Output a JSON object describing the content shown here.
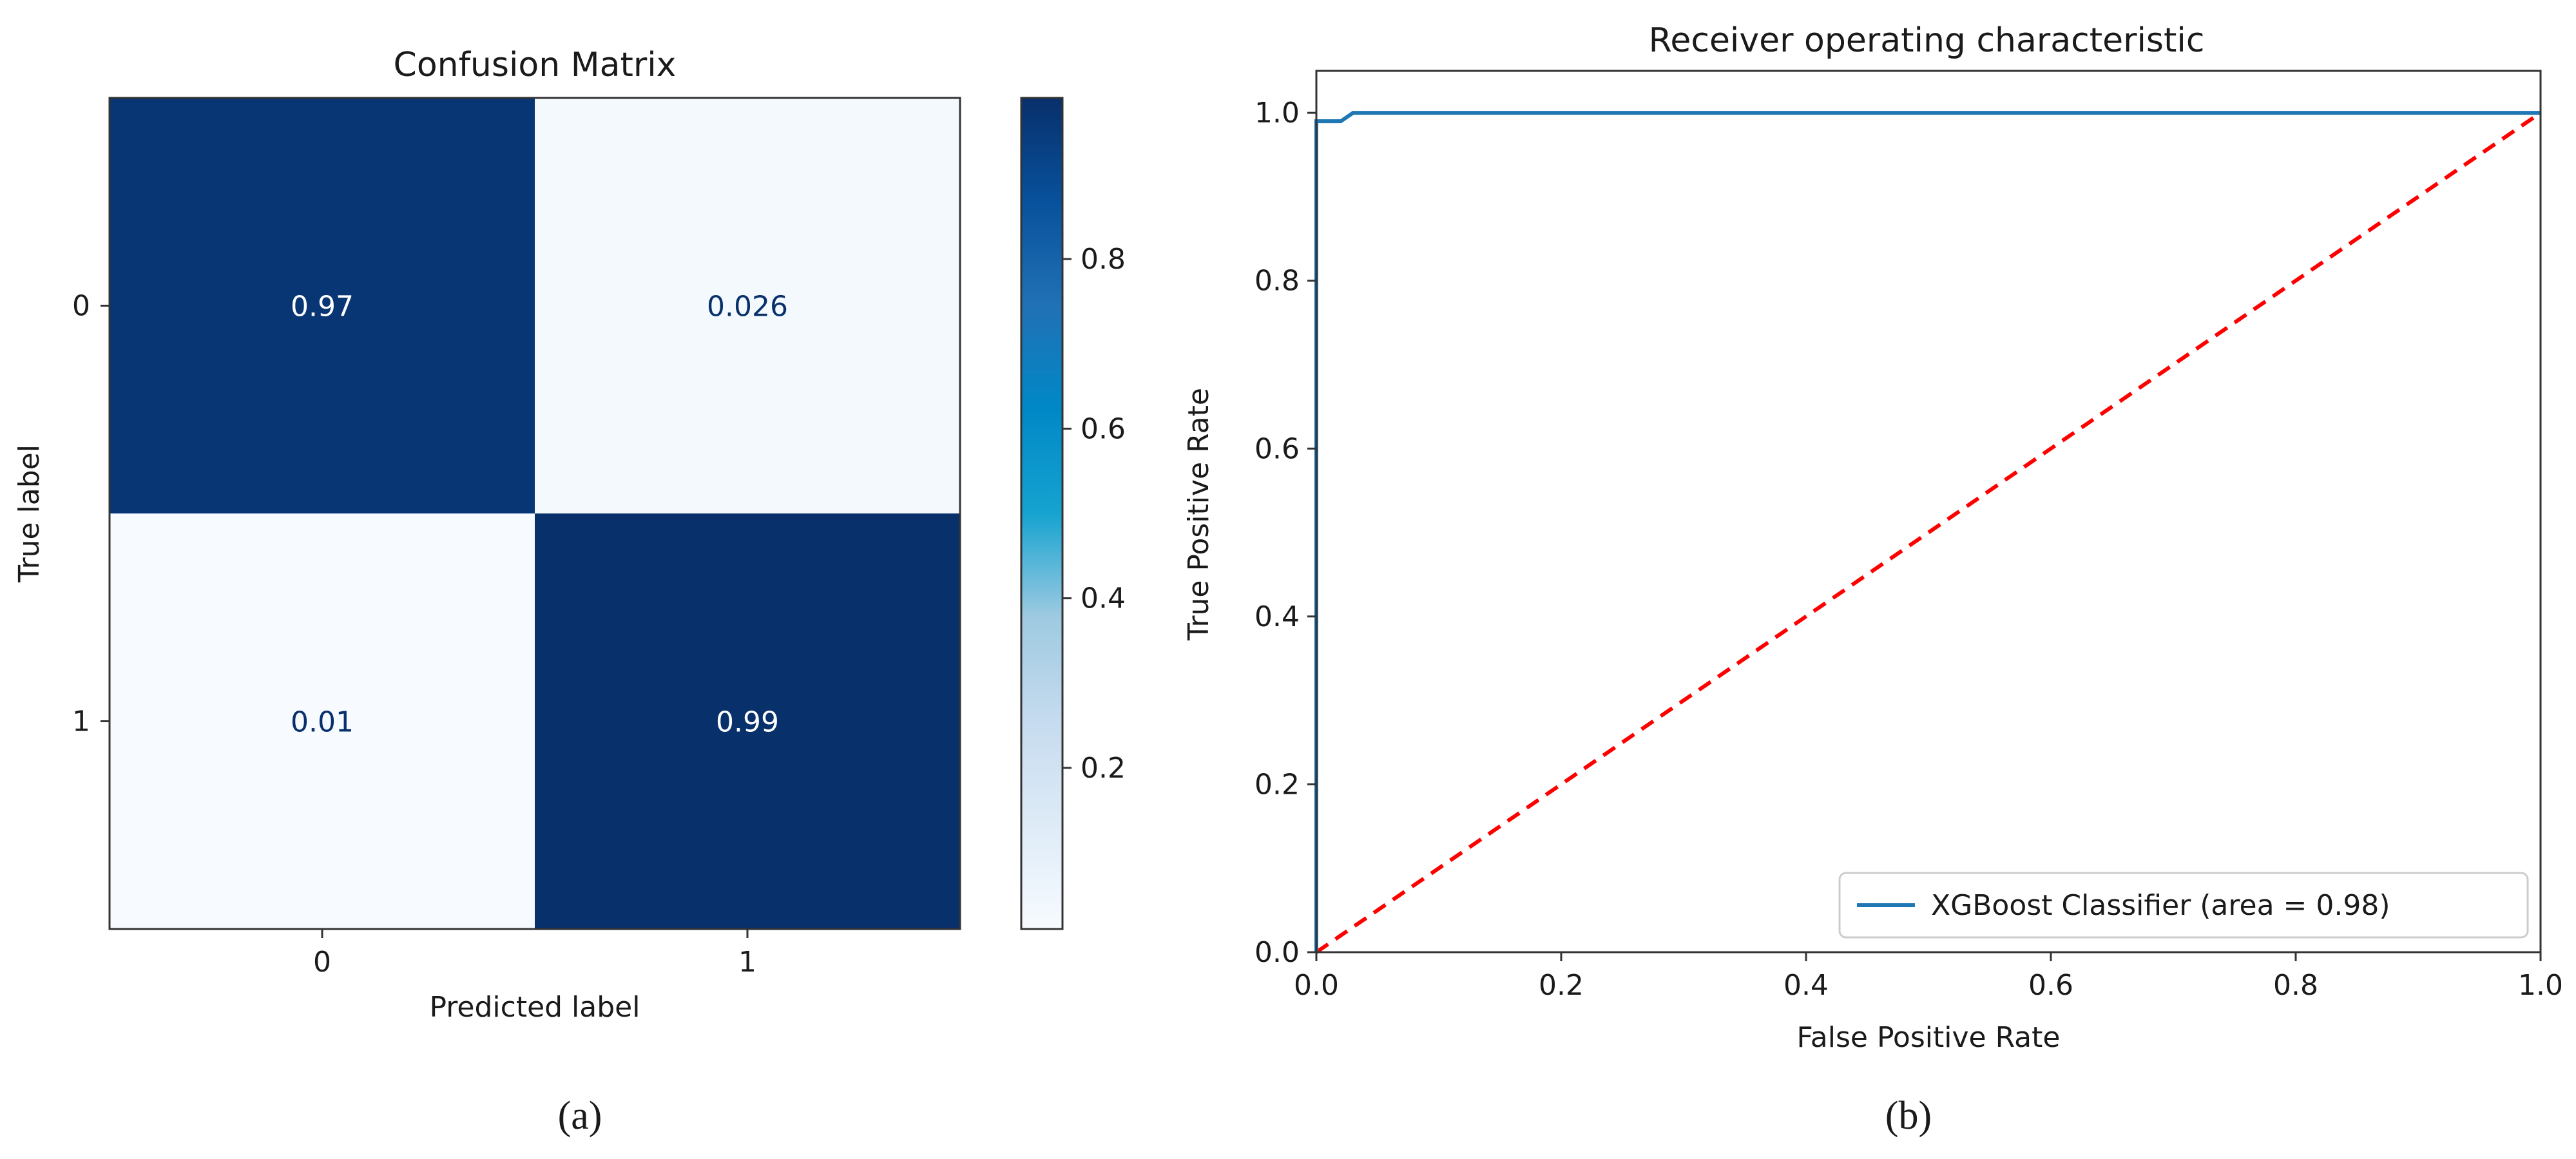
{
  "colors": {
    "cmap_dark": "#08306b",
    "cmap_light": "#f7fbff",
    "roc_line": "#1f77b4",
    "chance_line": "#ff0000",
    "text_on_dark": "#ffffff",
    "text_on_light": "#08306b"
  },
  "panels": {
    "a_label": "(a)",
    "b_label": "(b)"
  },
  "chart_data": [
    {
      "type": "heatmap",
      "title": "Confusion Matrix",
      "xlabel": "Predicted label",
      "ylabel": "True label",
      "x_categories": [
        "0",
        "1"
      ],
      "y_categories": [
        "0",
        "1"
      ],
      "values": [
        [
          0.97,
          0.026
        ],
        [
          0.01,
          0.99
        ]
      ],
      "cell_labels": [
        [
          "0.97",
          "0.026"
        ],
        [
          "0.01",
          "0.99"
        ]
      ],
      "colorbar": {
        "range": [
          0.01,
          0.99
        ],
        "ticks": [
          0.2,
          0.4,
          0.6,
          0.8
        ],
        "tick_labels": [
          "0.2",
          "0.4",
          "0.6",
          "0.8"
        ]
      },
      "colormap": "Blues"
    },
    {
      "type": "line",
      "title": "Receiver operating characteristic",
      "xlabel": "False Positive Rate",
      "ylabel": "True Positive Rate",
      "xlim": [
        0.0,
        1.0
      ],
      "ylim": [
        0.0,
        1.05
      ],
      "x_ticks": [
        0.0,
        0.2,
        0.4,
        0.6,
        0.8,
        1.0
      ],
      "x_tick_labels": [
        "0.0",
        "0.2",
        "0.4",
        "0.6",
        "0.8",
        "1.0"
      ],
      "y_ticks": [
        0.0,
        0.2,
        0.4,
        0.6,
        0.8,
        1.0
      ],
      "y_tick_labels": [
        "0.0",
        "0.2",
        "0.4",
        "0.6",
        "0.8",
        "1.0"
      ],
      "legend_position": "lower right",
      "series": [
        {
          "name": "XGBoost Classifier (area = 0.98)",
          "style": "solid",
          "x": [
            0.0,
            0.0,
            0.02,
            0.03,
            1.0
          ],
          "y": [
            0.0,
            0.99,
            0.99,
            1.0,
            1.0
          ]
        },
        {
          "style": "dashed",
          "x": [
            0.0,
            1.0
          ],
          "y": [
            0.0,
            1.0
          ]
        }
      ]
    }
  ]
}
